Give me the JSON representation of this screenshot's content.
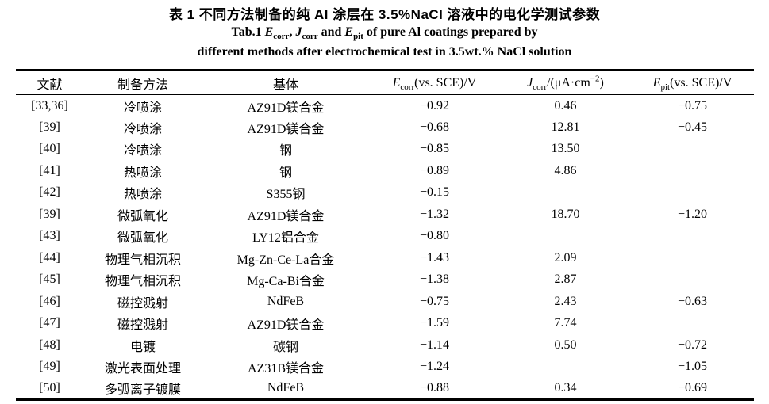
{
  "title": {
    "zh": "表 1  不同方法制备的纯 Al 涂层在 3.5%NaCl 溶液中的电化学测试参数",
    "en": {
      "t1": "Tab.1 ",
      "sym1": "E",
      "sub1": "corr",
      "t2": ", ",
      "sym2": "J",
      "sub2": "corr",
      "t3": " and ",
      "sym3": "E",
      "sub3": "pit",
      "t4": " of pure Al coatings prepared by",
      "line2": "different methods after electrochemical test in 3.5wt.% NaCl solution"
    }
  },
  "table": {
    "headers": {
      "ref": "文献",
      "method": "制备方法",
      "substrate": "基体",
      "ecorr": {
        "sym": "E",
        "sub": "corr",
        "rest": "(vs. SCE)/V"
      },
      "jcorr": {
        "sym": "J",
        "sub": "corr",
        "rest1": "/(μA·cm",
        "sup": "−2",
        "rest2": ")"
      },
      "epit": {
        "sym": "E",
        "sub": "pit",
        "rest": "(vs. SCE)/V"
      }
    },
    "rows": [
      {
        "ref": "[33,36]",
        "method": "冷喷涂",
        "substrate": "AZ91D镁合金",
        "ecorr": "−0.92",
        "jcorr": "0.46",
        "epit": "−0.75"
      },
      {
        "ref": "[39]",
        "method": "冷喷涂",
        "substrate": "AZ91D镁合金",
        "ecorr": "−0.68",
        "jcorr": "12.81",
        "epit": "−0.45"
      },
      {
        "ref": "[40]",
        "method": "冷喷涂",
        "substrate": "钢",
        "ecorr": "−0.85",
        "jcorr": "13.50",
        "epit": ""
      },
      {
        "ref": "[41]",
        "method": "热喷涂",
        "substrate": "钢",
        "ecorr": "−0.89",
        "jcorr": "4.86",
        "epit": ""
      },
      {
        "ref": "[42]",
        "method": "热喷涂",
        "substrate": "S355钢",
        "ecorr": "−0.15",
        "jcorr": "",
        "epit": ""
      },
      {
        "ref": "[39]",
        "method": "微弧氧化",
        "substrate": "AZ91D镁合金",
        "ecorr": "−1.32",
        "jcorr": "18.70",
        "epit": "−1.20"
      },
      {
        "ref": "[43]",
        "method": "微弧氧化",
        "substrate": "LY12铝合金",
        "ecorr": "−0.80",
        "jcorr": "",
        "epit": ""
      },
      {
        "ref": "[44]",
        "method": "物理气相沉积",
        "substrate": "Mg-Zn-Ce-La合金",
        "ecorr": "−1.43",
        "jcorr": "2.09",
        "epit": ""
      },
      {
        "ref": "[45]",
        "method": "物理气相沉积",
        "substrate": "Mg-Ca-Bi合金",
        "ecorr": "−1.38",
        "jcorr": "2.87",
        "epit": ""
      },
      {
        "ref": "[46]",
        "method": "磁控溅射",
        "substrate": "NdFeB",
        "ecorr": "−0.75",
        "jcorr": "2.43",
        "epit": "−0.63"
      },
      {
        "ref": "[47]",
        "method": "磁控溅射",
        "substrate": "AZ91D镁合金",
        "ecorr": "−1.59",
        "jcorr": "7.74",
        "epit": ""
      },
      {
        "ref": "[48]",
        "method": "电镀",
        "substrate": "碳钢",
        "ecorr": "−1.14",
        "jcorr": "0.50",
        "epit": "−0.72"
      },
      {
        "ref": "[49]",
        "method": "激光表面处理",
        "substrate": "AZ31B镁合金",
        "ecorr": "−1.24",
        "jcorr": "",
        "epit": "−1.05"
      },
      {
        "ref": "[50]",
        "method": "多弧离子镀膜",
        "substrate": "NdFeB",
        "ecorr": "−0.88",
        "jcorr": "0.34",
        "epit": "−0.69"
      }
    ]
  }
}
